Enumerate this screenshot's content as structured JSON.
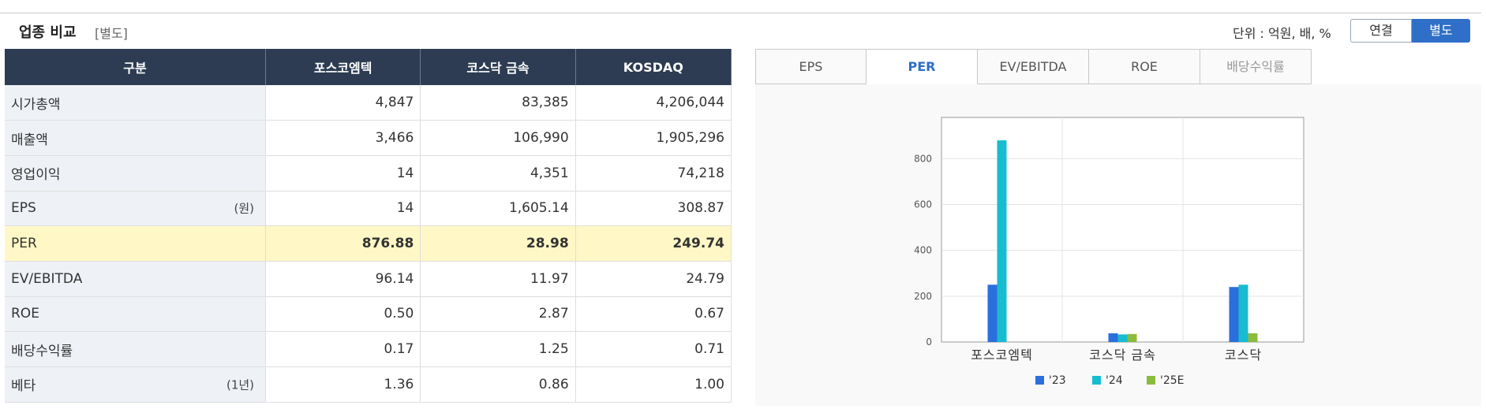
{
  "header": {
    "title": "업종 비교",
    "subtitle": "[별도]",
    "unit": "단위 : 억원, 배, %",
    "toggle_off": "연결",
    "toggle_on": "별도"
  },
  "table": {
    "headers": [
      "구분",
      "포스코엠텍",
      "코스닥 금속",
      "KOSDAQ"
    ],
    "rows": [
      {
        "label": "시가총액",
        "unit": "",
        "values": [
          "4,847",
          "83,385",
          "4,206,044"
        ]
      },
      {
        "label": "매출액",
        "unit": "",
        "values": [
          "3,466",
          "106,990",
          "1,905,296"
        ]
      },
      {
        "label": "영업이익",
        "unit": "",
        "values": [
          "14",
          "4,351",
          "74,218"
        ]
      },
      {
        "label": "EPS",
        "unit": "(원)",
        "values": [
          "14",
          "1,605.14",
          "308.87"
        ]
      },
      {
        "label": "PER",
        "unit": "",
        "values": [
          "876.88",
          "28.98",
          "249.74"
        ]
      },
      {
        "label": "EV/EBITDA",
        "unit": "",
        "values": [
          "96.14",
          "11.97",
          "24.79"
        ]
      },
      {
        "label": "ROE",
        "unit": "",
        "values": [
          "0.50",
          "2.87",
          "0.67"
        ]
      },
      {
        "label": "배당수익률",
        "unit": "",
        "values": [
          "0.17",
          "1.25",
          "0.71"
        ]
      },
      {
        "label": "베타",
        "unit": "(1년)",
        "values": [
          "1.36",
          "0.86",
          "1.00"
        ]
      }
    ]
  },
  "tabs": [
    {
      "label": "EPS",
      "state": "normal"
    },
    {
      "label": "PER",
      "state": "active"
    },
    {
      "label": "EV/EBITDA",
      "state": "normal"
    },
    {
      "label": "ROE",
      "state": "normal"
    },
    {
      "label": "배당수익률",
      "state": "dim"
    }
  ],
  "chart_data": {
    "type": "bar",
    "categories": [
      "포스코엠텍",
      "코스닥 금속",
      "코스닥"
    ],
    "series": [
      {
        "name": "'23",
        "color": "#2b6fdc",
        "values": [
          250,
          38,
          240
        ]
      },
      {
        "name": "'24",
        "color": "#17bcd0",
        "values": [
          880,
          33,
          250
        ]
      },
      {
        "name": "'25E",
        "color": "#8cbc3e",
        "values": [
          null,
          35,
          38
        ]
      }
    ],
    "ylim": [
      0,
      980
    ],
    "yticks": [
      0,
      200,
      400,
      600,
      800
    ],
    "grid": true,
    "legend": "bottom"
  }
}
